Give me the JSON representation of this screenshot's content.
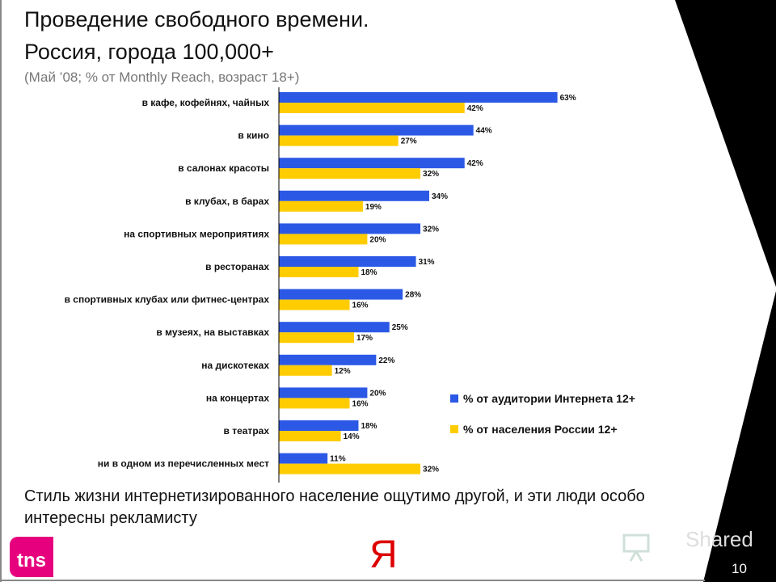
{
  "slide": {
    "title_line1": "Проведение свободного времени.",
    "title_line2": "Россия, города 100,000+",
    "subtitle": "(Май ’08; % от Monthly Reach, возраст 18+)",
    "note": "Стиль жизни интернетизированного  население ощутимо другой, и эти люди особо интересны рекламисту",
    "logo_tns": "tns",
    "logo_yandex": "Я",
    "watermark": "Shared",
    "page_number": "10"
  },
  "chart_data": {
    "type": "bar",
    "orientation": "horizontal",
    "categories": [
      "в кафе, кофейнях, чайных",
      "в кино",
      "в салонах красоты",
      "в клубах, в барах",
      "на спортивных мероприятиях",
      "в ресторанах",
      "в спортивных клубах или фитнес-центрах",
      "в музеях, на выставках",
      "на дискотеках",
      "на концертах",
      "в театрах",
      "ни в одном из перечисленных мест"
    ],
    "series": [
      {
        "name": "% от аудитории Интернета 12+",
        "color": "#2b59e6",
        "values": [
          63,
          44,
          42,
          34,
          32,
          31,
          28,
          25,
          22,
          20,
          18,
          11
        ]
      },
      {
        "name": "% от населения России 12+",
        "color": "#ffcc00",
        "values": [
          42,
          27,
          32,
          19,
          20,
          18,
          16,
          17,
          12,
          16,
          14,
          32
        ]
      }
    ],
    "value_suffix": "%",
    "xlim": [
      0,
      70
    ],
    "grid": false,
    "legend_placement": "bottom-right"
  }
}
